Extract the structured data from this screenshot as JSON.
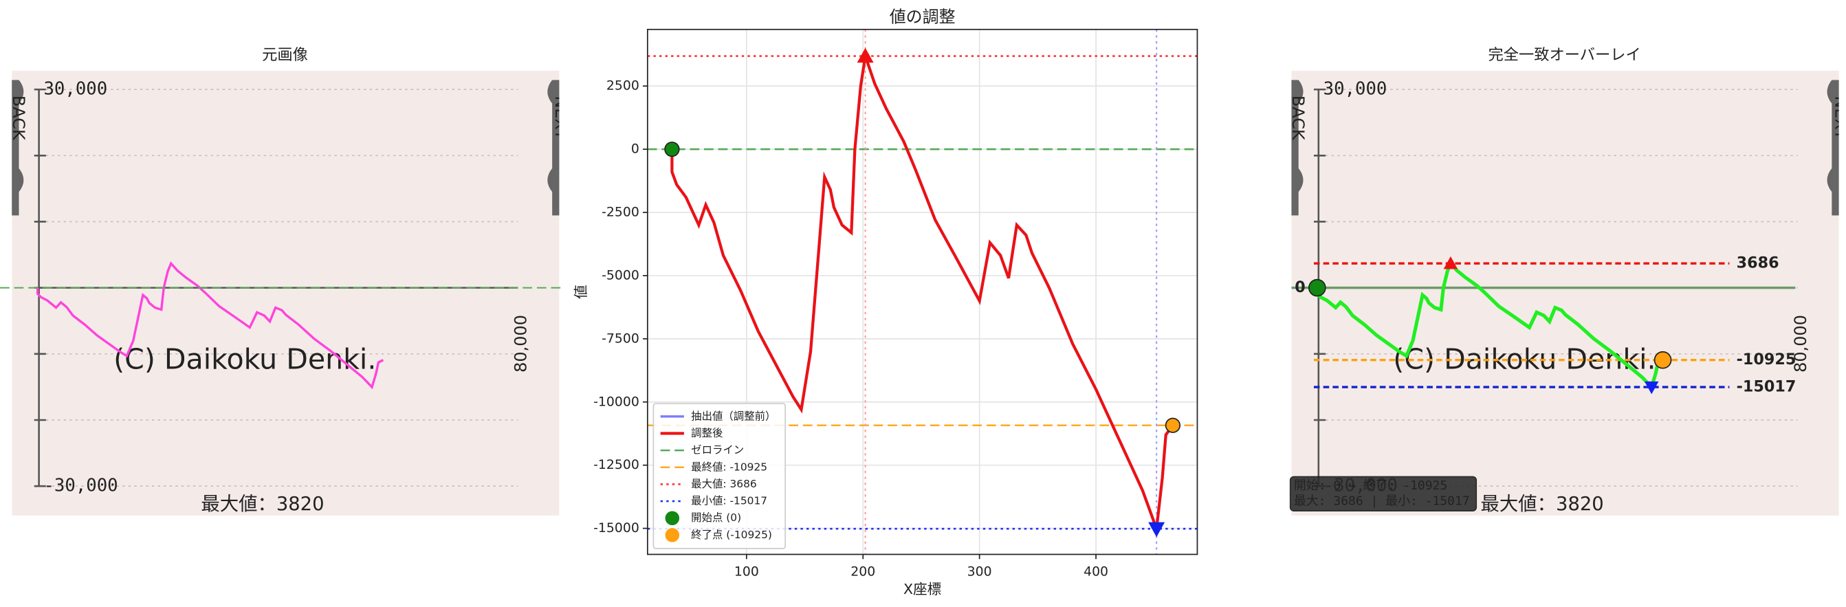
{
  "chart_data": [
    {
      "type": "image",
      "title": "元画像",
      "ylim": [
        -30000,
        30000
      ],
      "yticks": [
        {
          "value": 30000,
          "label": "30,000"
        },
        {
          "value": -30000,
          "label": "-30,000"
        }
      ],
      "minor_yticks": [
        20000,
        10000,
        0,
        -10000,
        -20000
      ],
      "xlim": [
        4,
        685
      ],
      "line_color": "#ff44dd",
      "caption": "最大値：3820",
      "watermark": "(C) Daikoku Denki.",
      "side_label": "80,000",
      "back": "BACK",
      "next": "NEXT"
    },
    {
      "type": "line",
      "title": "値の調整",
      "xlabel": "X座標",
      "ylabel": "値",
      "x": [
        36,
        36,
        40,
        48,
        59,
        65,
        72,
        80,
        95,
        110,
        125,
        140,
        147,
        155,
        162,
        167,
        172,
        175,
        182,
        190,
        193,
        198,
        202,
        210,
        220,
        235,
        245,
        262,
        280,
        300,
        309,
        318,
        325,
        332,
        340,
        345,
        360,
        380,
        400,
        420,
        440,
        452,
        457,
        460,
        466
      ],
      "series": [
        {
          "name": "抽出値（調整前）",
          "color": "#7b7bff",
          "values": [
            0,
            -900,
            -1400,
            -1900,
            -3000,
            -2200,
            -2900,
            -4200,
            -5600,
            -7200,
            -8500,
            -9800,
            -10300,
            -8000,
            -4000,
            -1100,
            -1600,
            -2300,
            -3000,
            -3300,
            0,
            2500,
            3686,
            2600,
            1600,
            300,
            -800,
            -2800,
            -4300,
            -6000,
            -3700,
            -4200,
            -5100,
            -3000,
            -3400,
            -4100,
            -5500,
            -7700,
            -9500,
            -11500,
            -13500,
            -15017,
            -13000,
            -11300,
            -10925
          ]
        },
        {
          "name": "調整後",
          "color": "#ee1111",
          "values": [
            0,
            -900,
            -1400,
            -1900,
            -3000,
            -2200,
            -2900,
            -4200,
            -5600,
            -7200,
            -8500,
            -9800,
            -10300,
            -8000,
            -4000,
            -1100,
            -1600,
            -2300,
            -3000,
            -3300,
            0,
            2500,
            3686,
            2600,
            1600,
            300,
            -800,
            -2800,
            -4300,
            -6000,
            -3700,
            -4200,
            -5100,
            -3000,
            -3400,
            -4100,
            -5500,
            -7700,
            -9500,
            -11500,
            -13500,
            -15017,
            -13000,
            -11300,
            -10925
          ]
        }
      ],
      "reference_lines": [
        {
          "name": "ゼロライン",
          "value": 0,
          "color": "#55aa55",
          "dash": "dashed"
        },
        {
          "name": "最終値: -10925",
          "value": -10925,
          "color": "#ffaa22",
          "dash": "dashed"
        },
        {
          "name": "最大値: 3686",
          "value": 3686,
          "color": "#ff3333",
          "dash": "dotted"
        },
        {
          "name": "最小値: -15017",
          "value": -15017,
          "color": "#2233ee",
          "dash": "dotted"
        }
      ],
      "points": [
        {
          "name": "開始点 (0)",
          "x": 36,
          "y": 0,
          "color": "#118811",
          "marker": "circle"
        },
        {
          "name": "終了点 (-10925)",
          "x": 466,
          "y": -10925,
          "color": "#ffa010",
          "marker": "circle"
        },
        {
          "x": 202,
          "y": 3686,
          "color": "#ee1111",
          "marker": "triangle-up",
          "vline_color": "#ff9999"
        },
        {
          "x": 452,
          "y": -15017,
          "color": "#1122ee",
          "marker": "triangle-down",
          "vline_color": "#9999ff"
        }
      ],
      "xlim": [
        15,
        487
      ],
      "ylim": [
        -16030,
        4740
      ],
      "xticks": [
        100,
        200,
        300,
        400
      ],
      "yticks": [
        2500,
        0,
        -2500,
        -5000,
        -7500,
        -10000,
        -12500,
        -15000
      ],
      "grid": true,
      "legend": "lower left"
    },
    {
      "type": "overlay",
      "title": "完全一致オーバーレイ",
      "line_color": "#22ee22",
      "zero_color": "#6a9a6a",
      "levels": [
        {
          "value": 3686,
          "color": "#ee1111"
        },
        {
          "value": -10925,
          "color": "#ffa010"
        },
        {
          "value": -15017,
          "color": "#1122cc"
        }
      ],
      "annotation": [
        "開始: 0 → 終了: -10925",
        "最大: 3686 | 最小: -15017"
      ]
    }
  ]
}
